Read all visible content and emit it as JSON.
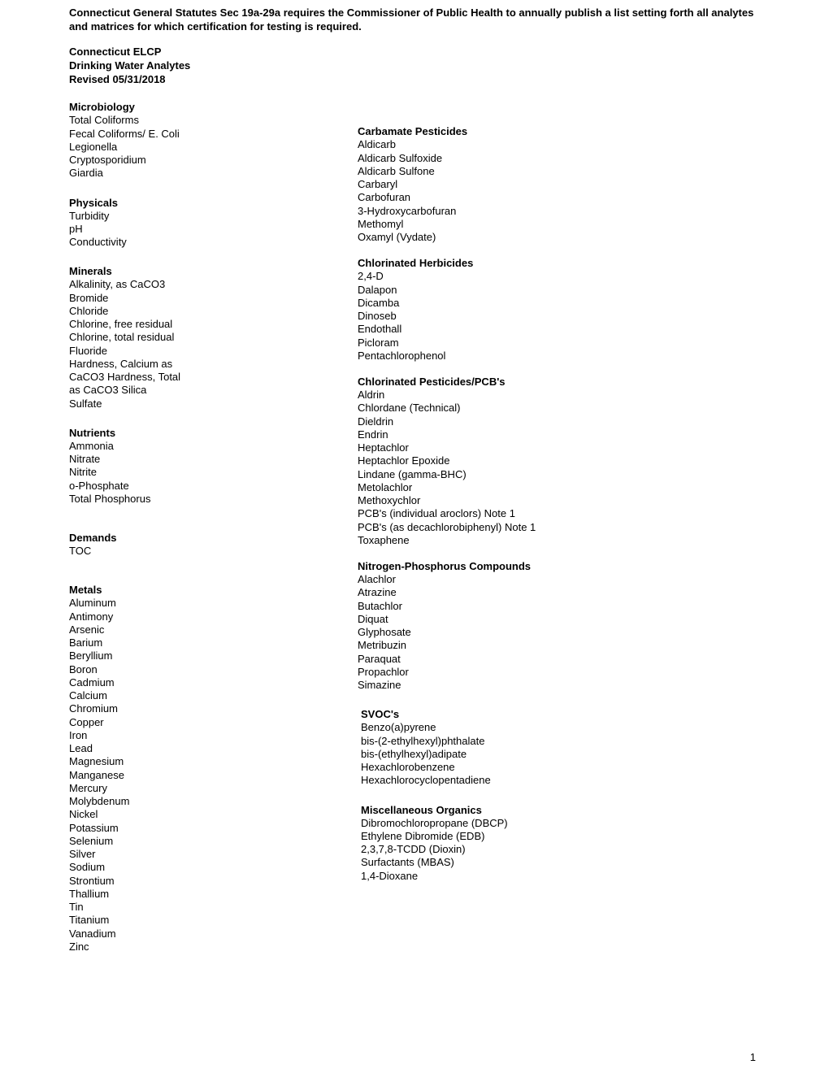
{
  "statute": "Connecticut General Statutes Sec 19a-29a requires the Commissioner of Public Health to annually publish a list setting forth all analytes and matrices for which certification for testing is required.",
  "header": {
    "line1": "Connecticut ELCP",
    "line2": "Drinking Water Analytes",
    "line3": "Revised 05/31/2018"
  },
  "pageNumber": "1",
  "left": {
    "microbiology": {
      "title": "Microbiology",
      "items": [
        "Total Coliforms",
        "Fecal Coliforms/ E. Coli",
        "Legionella",
        "Cryptosporidium",
        "Giardia"
      ]
    },
    "physicals": {
      "title": "Physicals",
      "items": [
        "Turbidity",
        "pH",
        "Conductivity"
      ]
    },
    "minerals": {
      "title": "Minerals",
      "items": [
        "Alkalinity, as CaCO3",
        "Bromide",
        "Chloride",
        "Chlorine, free residual",
        "Chlorine, total residual",
        "Fluoride",
        "Hardness, Calcium as CaCO3 Hardness, Total as CaCO3 Silica",
        "Sulfate"
      ]
    },
    "nutrients": {
      "title": "Nutrients",
      "items": [
        "Ammonia",
        "Nitrate",
        "Nitrite",
        "o-Phosphate",
        "Total Phosphorus"
      ]
    },
    "demands": {
      "title": "Demands",
      "items": [
        "TOC"
      ]
    },
    "metals": {
      "title": "Metals",
      "items": [
        "Aluminum",
        "Antimony",
        "Arsenic",
        "Barium",
        "Beryllium",
        "Boron",
        "Cadmium",
        "Calcium",
        "Chromium",
        "Copper",
        "Iron",
        "Lead",
        "Magnesium",
        "Manganese",
        "Mercury",
        "Molybdenum",
        "Nickel",
        "Potassium",
        "Selenium",
        "Silver",
        "Sodium",
        "Strontium",
        "Thallium",
        "Tin",
        "Titanium",
        "Vanadium",
        "Zinc"
      ]
    }
  },
  "right": {
    "carbamate": {
      "title": "Carbamate Pesticides",
      "items": [
        "Aldicarb",
        "Aldicarb Sulfoxide",
        "Aldicarb Sulfone",
        "Carbaryl",
        "Carbofuran",
        "3-Hydroxycarbofuran",
        "Methomyl",
        "Oxamyl (Vydate)"
      ]
    },
    "chlor_herb": {
      "title": "Chlorinated Herbicides",
      "items": [
        "2,4-D",
        "Dalapon",
        "Dicamba",
        "Dinoseb",
        "Endothall",
        "Picloram",
        "Pentachlorophenol"
      ]
    },
    "chlor_pest": {
      "title": "Chlorinated Pesticides/PCB's",
      "items": [
        "Aldrin",
        "Chlordane (Technical)",
        "Dieldrin",
        "Endrin",
        "Heptachlor",
        "Heptachlor Epoxide",
        "Lindane (gamma-BHC)",
        "Metolachlor",
        "Methoxychlor",
        "PCB's (individual aroclors) Note 1",
        "PCB's (as decachlorobiphenyl) Note 1",
        "Toxaphene"
      ]
    },
    "nitrogen": {
      "title": "Nitrogen-Phosphorus Compounds",
      "items": [
        "Alachlor",
        "Atrazine",
        "Butachlor",
        "Diquat",
        "Glyphosate",
        "Metribuzin",
        "Paraquat",
        "Propachlor",
        "Simazine"
      ]
    },
    "svocs": {
      "title": "SVOC's",
      "items": [
        "Benzo(a)pyrene",
        "bis-(2-ethylhexyl)phthalate",
        "bis-(ethylhexyl)adipate",
        "Hexachlorobenzene",
        "Hexachlorocyclopentadiene"
      ]
    },
    "misc": {
      "title": "Miscellaneous Organics",
      "items": [
        "Dibromochloropropane (DBCP)",
        "Ethylene Dibromide (EDB)",
        "2,3,7,8-TCDD (Dioxin)",
        "Surfactants (MBAS)",
        "1,4-Dioxane"
      ]
    }
  }
}
